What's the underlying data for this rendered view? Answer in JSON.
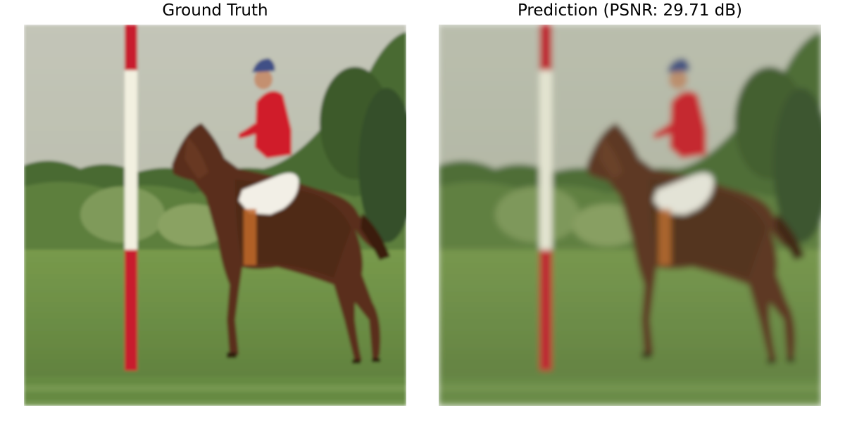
{
  "panels": {
    "left": {
      "title": "Ground Truth"
    },
    "right": {
      "title": "Prediction (PSNR: 29.71 dB)"
    }
  },
  "scene": {
    "subject": "polo player on brown horse beside a red and white striped pole",
    "colors": {
      "sky": "#c3c5b8",
      "sky_low": "#b4b8a2",
      "trees_dark": "#3f5c2c",
      "trees_mid": "#587a3c",
      "trees_light": "#7f9a5a",
      "grass": "#6a8c44",
      "grass_dark": "#587638",
      "horse": "#5a2f1c",
      "horse_dark": "#3a1c10",
      "rider_shirt": "#d01e2c",
      "rider_pants": "#f2efe6",
      "helmet": "#3f4f86",
      "pole_red": "#c81e2e",
      "pole_white": "#f2f0e0"
    }
  }
}
